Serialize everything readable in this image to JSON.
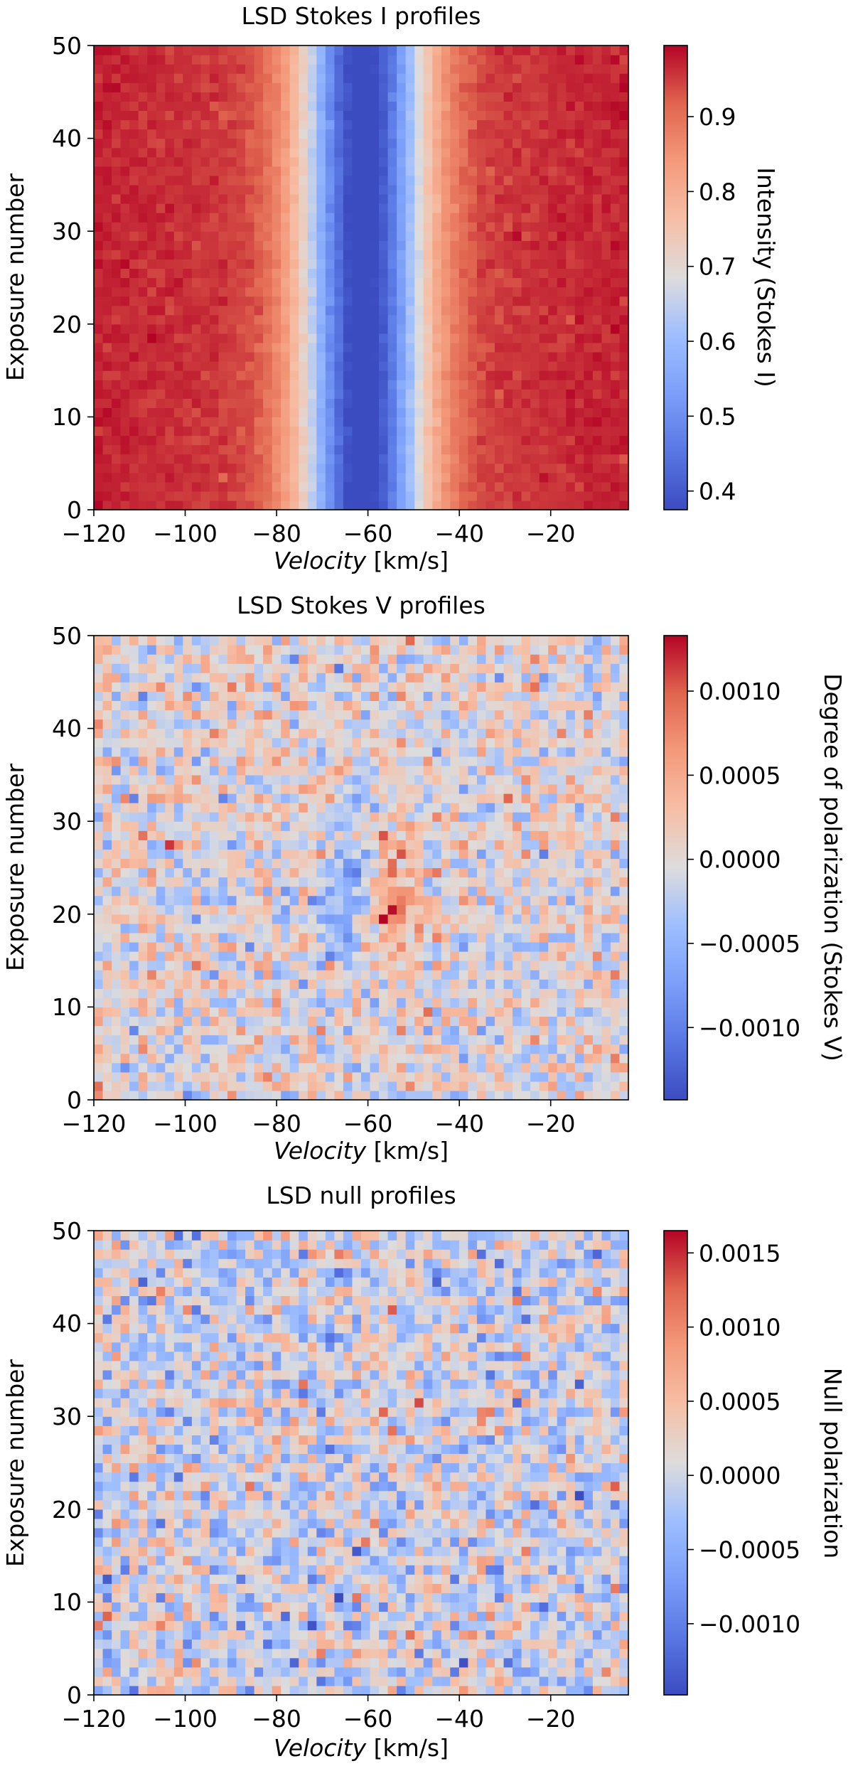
{
  "chart_data": [
    {
      "type": "heatmap",
      "title": "LSD Stokes I profiles",
      "xlabel_italic": "Velocity",
      "xlabel_unit": " [km/s]",
      "ylabel": "Exposure number",
      "colorbar_label": "Intensity (Stokes I)",
      "x_range": [
        -120,
        -3
      ],
      "y_range": [
        0,
        50
      ],
      "x_ticks": [
        -120,
        -100,
        -80,
        -60,
        -40,
        -20
      ],
      "x_tick_labels": [
        "−120",
        "−100",
        "−80",
        "−60",
        "−40",
        "−20"
      ],
      "y_ticks": [
        0,
        10,
        20,
        30,
        40,
        50
      ],
      "y_tick_labels": [
        "0",
        "10",
        "20",
        "30",
        "40",
        "50"
      ],
      "colormap": "coolwarm",
      "color_range": [
        0.375,
        0.995
      ],
      "colorbar_ticks": [
        0.4,
        0.5,
        0.6,
        0.7,
        0.8,
        0.9
      ],
      "colorbar_tick_labels": [
        "0.4",
        "0.5",
        "0.6",
        "0.7",
        "0.8",
        "0.9"
      ],
      "grid": false,
      "n_x_bins": 60,
      "n_y_bins": 50,
      "pattern": "absorption_line",
      "line_center": -61,
      "line_depth": 0.6,
      "continuum": 0.985,
      "noise": 0.01
    },
    {
      "type": "heatmap",
      "title": "LSD Stokes V profiles",
      "xlabel_italic": "Velocity",
      "xlabel_unit": " [km/s]",
      "ylabel": "Exposure number",
      "colorbar_label": "Degree of polarization (Stokes V)",
      "x_range": [
        -120,
        -3
      ],
      "y_range": [
        0,
        50
      ],
      "x_ticks": [
        -120,
        -100,
        -80,
        -60,
        -40,
        -20
      ],
      "x_tick_labels": [
        "−120",
        "−100",
        "−80",
        "−60",
        "−40",
        "−20"
      ],
      "y_ticks": [
        0,
        10,
        20,
        30,
        40,
        50
      ],
      "y_tick_labels": [
        "0",
        "10",
        "20",
        "30",
        "40",
        "50"
      ],
      "colormap": "coolwarm",
      "color_range": [
        -0.00143,
        0.00133
      ],
      "colorbar_ticks": [
        -0.001,
        -0.0005,
        0.0,
        0.0005,
        0.001
      ],
      "colorbar_tick_labels": [
        "−0.0010",
        "−0.0005",
        "0.0000",
        "0.0005",
        "0.0010"
      ],
      "grid": false,
      "n_x_bins": 60,
      "n_y_bins": 50,
      "pattern": "zeeman_signature",
      "noise": 0.00032,
      "signal_amplitude": 0.0009,
      "signal_exposures": [
        10,
        34
      ]
    },
    {
      "type": "heatmap",
      "title": "LSD null profiles",
      "xlabel_italic": "Velocity",
      "xlabel_unit": " [km/s]",
      "ylabel": "Exposure number",
      "colorbar_label": "Null polarization",
      "x_range": [
        -120,
        -3
      ],
      "y_range": [
        0,
        50
      ],
      "x_ticks": [
        -120,
        -100,
        -80,
        -60,
        -40,
        -20
      ],
      "x_tick_labels": [
        "−120",
        "−100",
        "−80",
        "−60",
        "−40",
        "−20"
      ],
      "y_ticks": [
        0,
        10,
        20,
        30,
        40,
        50
      ],
      "y_tick_labels": [
        "0",
        "10",
        "20",
        "30",
        "40",
        "50"
      ],
      "colormap": "coolwarm",
      "color_range": [
        -0.00148,
        0.00165
      ],
      "colorbar_ticks": [
        -0.001,
        -0.0005,
        0.0,
        0.0005,
        0.001,
        0.0015
      ],
      "colorbar_tick_labels": [
        "−0.0010",
        "−0.0005",
        "0.0000",
        "0.0005",
        "0.0010",
        "0.0015"
      ],
      "grid": false,
      "n_x_bins": 60,
      "n_y_bins": 50,
      "pattern": "noise",
      "noise": 0.00042
    }
  ]
}
